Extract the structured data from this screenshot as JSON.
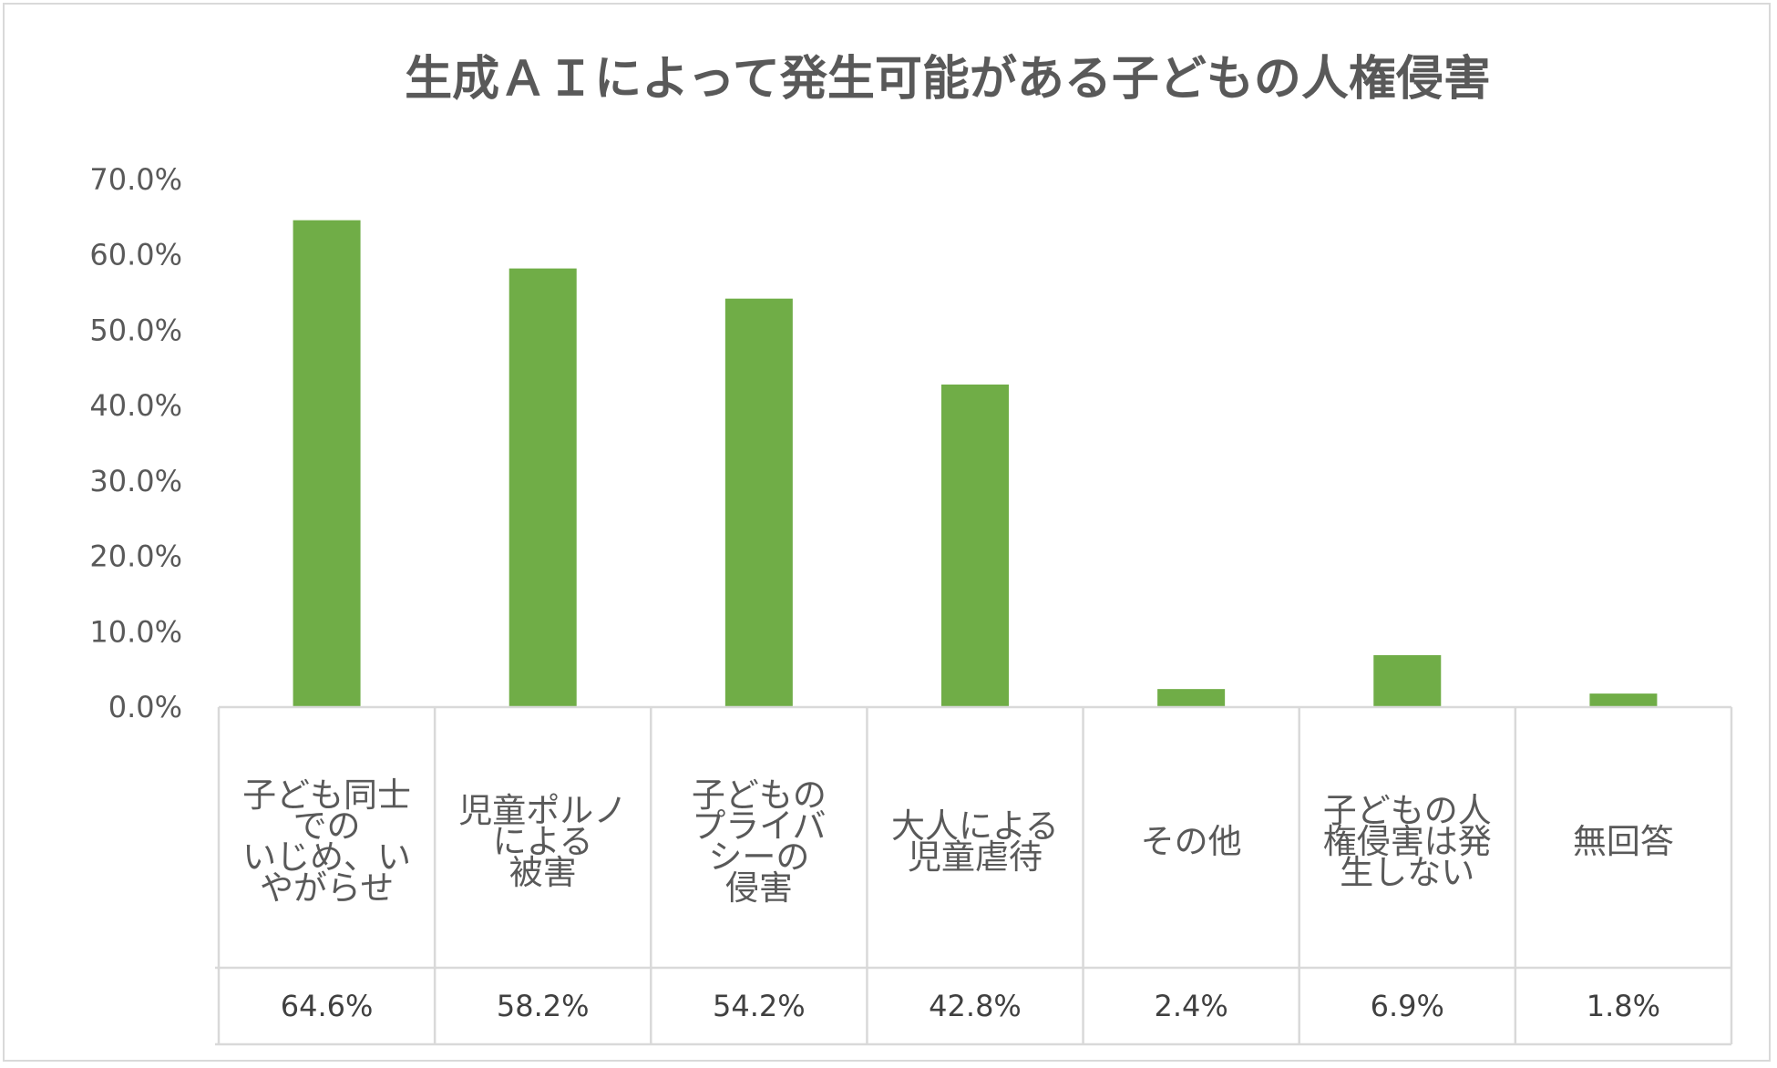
{
  "chart_data": {
    "type": "bar",
    "title": "生成ＡＩによって発生可能がある子どもの人権侵害",
    "categories": [
      "子ども同士での\nいじめ、い\nやがらせ",
      "児童ポルノ\nによる\n被害",
      "子どもの\nプライバ\nシーの\n侵害",
      "大人による\n児童虐待",
      "その他",
      "子どもの人\n権侵害は発\n生しない",
      "無回答"
    ],
    "category_lines": [
      [
        "子ども同士",
        "での",
        "いじめ、い",
        "やがらせ"
      ],
      [
        "児童ポルノ",
        "による",
        "被害"
      ],
      [
        "子どもの",
        "プライバ",
        "シーの",
        "侵害"
      ],
      [
        "大人による",
        "児童虐待"
      ],
      [
        "その他"
      ],
      [
        "子どもの人",
        "権侵害は発",
        "生しない"
      ],
      [
        "無回答"
      ]
    ],
    "values": [
      64.6,
      58.2,
      54.2,
      42.8,
      2.4,
      6.9,
      1.8
    ],
    "value_labels": [
      "64.6%",
      "58.2%",
      "54.2%",
      "42.8%",
      "2.4%",
      "6.9%",
      "1.8%"
    ],
    "ylim": [
      0,
      70
    ],
    "ytick_values": [
      0,
      10,
      20,
      30,
      40,
      50,
      60,
      70
    ],
    "ytick_labels": [
      "0.0%",
      "10.0%",
      "20.0%",
      "30.0%",
      "40.0%",
      "50.0%",
      "60.0%",
      "70.0%"
    ],
    "xlabel": "",
    "ylabel": "",
    "grid": false,
    "legend": "none",
    "data_table": true,
    "bar_color": "#70ad47",
    "table_border_color": "#d9d9d9",
    "text_color": "#595959"
  }
}
